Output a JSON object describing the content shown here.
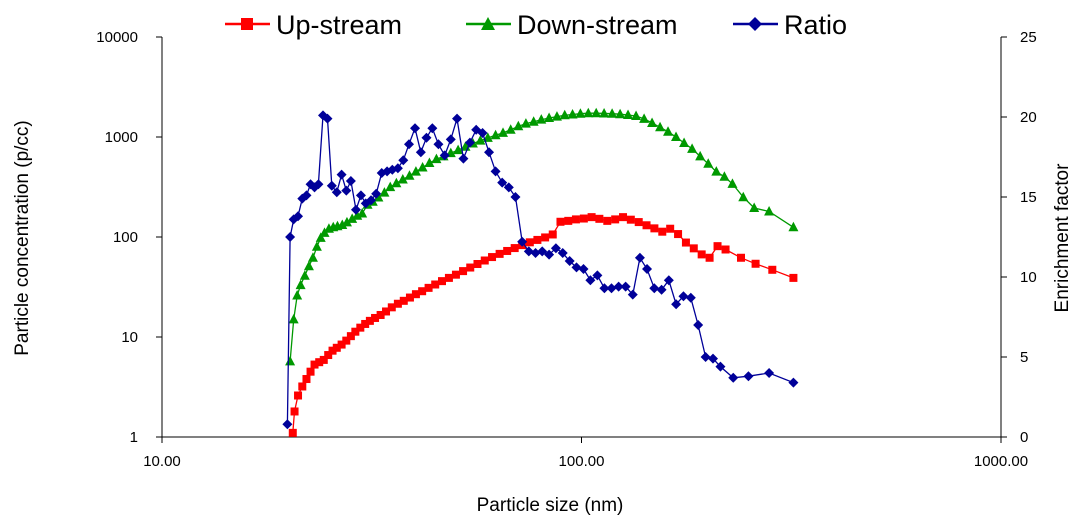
{
  "chart_data": {
    "type": "line",
    "x_scale": "log",
    "y_scale": "log",
    "y2_scale": "linear",
    "xlim": [
      10,
      1000
    ],
    "ylim": [
      1,
      10000
    ],
    "y2lim": [
      0,
      25
    ],
    "xlabel": "Particle size (nm)",
    "ylabel": "Particle concentration (p/cc)",
    "y2label": "Enrichment factor",
    "x_ticks": [
      "10.00",
      "100.00",
      "1000.00"
    ],
    "y_ticks": [
      "1",
      "10",
      "100",
      "1000",
      "10000"
    ],
    "y2_ticks": [
      "0",
      "5",
      "10",
      "15",
      "20",
      "25"
    ],
    "grid": false,
    "legend_position": "top",
    "series": [
      {
        "name": "Up-stream",
        "color": "#ff0000",
        "marker": "square",
        "axis": "left",
        "points": [
          [
            20.5,
            1.1
          ],
          [
            20.7,
            1.8
          ],
          [
            21.1,
            2.6
          ],
          [
            21.6,
            3.2
          ],
          [
            22.1,
            3.8
          ],
          [
            22.6,
            4.5
          ],
          [
            23.1,
            5.3
          ],
          [
            23.7,
            5.6
          ],
          [
            24.3,
            5.9
          ],
          [
            24.9,
            6.6
          ],
          [
            25.5,
            7.3
          ],
          [
            26.1,
            7.8
          ],
          [
            26.8,
            8.4
          ],
          [
            27.5,
            9.2
          ],
          [
            28.2,
            10.2
          ],
          [
            28.9,
            11.3
          ],
          [
            29.7,
            12.4
          ],
          [
            30.5,
            13.5
          ],
          [
            31.3,
            14.5
          ],
          [
            32.2,
            15.5
          ],
          [
            33.2,
            16.6
          ],
          [
            34.2,
            18.0
          ],
          [
            35.3,
            19.8
          ],
          [
            36.5,
            21.5
          ],
          [
            37.7,
            23.0
          ],
          [
            39.0,
            24.8
          ],
          [
            40.3,
            26.8
          ],
          [
            41.7,
            28.7
          ],
          [
            43.2,
            31.0
          ],
          [
            44.8,
            33.5
          ],
          [
            46.5,
            36.2
          ],
          [
            48.3,
            39.0
          ],
          [
            50.2,
            42.0
          ],
          [
            52.2,
            45.6
          ],
          [
            54.3,
            49.5
          ],
          [
            56.5,
            53.7
          ],
          [
            58.8,
            58.2
          ],
          [
            61.2,
            63.0
          ],
          [
            63.8,
            67.8
          ],
          [
            66.5,
            72.5
          ],
          [
            69.3,
            77.5
          ],
          [
            72.2,
            83.0
          ],
          [
            75.3,
            88.5
          ],
          [
            78.5,
            93.5
          ],
          [
            81.9,
            99.0
          ],
          [
            85.4,
            106.0
          ],
          [
            89.1,
            142.0
          ],
          [
            93.0,
            145.0
          ],
          [
            97.0,
            150.0
          ],
          [
            101.3,
            153.0
          ],
          [
            105.7,
            158.0
          ],
          [
            110.3,
            152.0
          ],
          [
            115.2,
            145.0
          ],
          [
            120.3,
            150.0
          ],
          [
            125.6,
            158.0
          ],
          [
            131.1,
            149.0
          ],
          [
            136.9,
            141.0
          ],
          [
            142.9,
            131.0
          ],
          [
            149.2,
            122.0
          ],
          [
            155.8,
            113.0
          ],
          [
            162.7,
            121.0
          ],
          [
            169.9,
            107.0
          ],
          [
            177.4,
            88.0
          ],
          [
            185.2,
            77.0
          ],
          [
            193.4,
            67.0
          ],
          [
            202.0,
            62.0
          ],
          [
            211.0,
            81.0
          ],
          [
            220.5,
            75.0
          ],
          [
            240.0,
            62.0
          ],
          [
            260.0,
            54.0
          ],
          [
            285.0,
            47.0
          ],
          [
            320.0,
            39.0
          ]
        ]
      },
      {
        "name": "Down-stream",
        "color": "#009900",
        "marker": "triangle",
        "axis": "left",
        "points": [
          [
            20.2,
            5.7
          ],
          [
            20.6,
            15.0
          ],
          [
            21.0,
            26.0
          ],
          [
            21.4,
            33.0
          ],
          [
            21.9,
            41.0
          ],
          [
            22.4,
            51.0
          ],
          [
            22.9,
            62.0
          ],
          [
            23.4,
            80.0
          ],
          [
            23.9,
            98.0
          ],
          [
            24.4,
            110.0
          ],
          [
            25.0,
            121.0
          ],
          [
            25.6,
            125.0
          ],
          [
            26.2,
            128.0
          ],
          [
            26.9,
            132.0
          ],
          [
            27.6,
            140.0
          ],
          [
            28.4,
            152.0
          ],
          [
            29.2,
            163.0
          ],
          [
            30.0,
            172.0
          ],
          [
            30.9,
            210.0
          ],
          [
            31.8,
            225.0
          ],
          [
            32.8,
            248.0
          ],
          [
            33.9,
            278.0
          ],
          [
            35.0,
            315.0
          ],
          [
            36.2,
            345.0
          ],
          [
            37.5,
            376.0
          ],
          [
            38.9,
            410.0
          ],
          [
            40.3,
            450.0
          ],
          [
            41.8,
            495.0
          ],
          [
            43.4,
            550.0
          ],
          [
            45.1,
            600.0
          ],
          [
            46.9,
            640.0
          ],
          [
            48.8,
            690.0
          ],
          [
            50.8,
            740.0
          ],
          [
            52.9,
            800.0
          ],
          [
            55.1,
            860.0
          ],
          [
            57.4,
            920.0
          ],
          [
            59.8,
            980.0
          ],
          [
            62.4,
            1040.0
          ],
          [
            65.0,
            1100.0
          ],
          [
            67.8,
            1180.0
          ],
          [
            70.7,
            1280.0
          ],
          [
            73.7,
            1360.0
          ],
          [
            76.9,
            1420.0
          ],
          [
            80.2,
            1490.0
          ],
          [
            83.7,
            1550.0
          ],
          [
            87.4,
            1600.0
          ],
          [
            91.2,
            1650.0
          ],
          [
            95.2,
            1680.0
          ],
          [
            99.4,
            1710.0
          ],
          [
            103.8,
            1730.0
          ],
          [
            108.4,
            1730.0
          ],
          [
            113.2,
            1720.0
          ],
          [
            118.3,
            1710.0
          ],
          [
            123.6,
            1690.0
          ],
          [
            129.1,
            1660.0
          ],
          [
            134.9,
            1620.0
          ],
          [
            141.0,
            1520.0
          ],
          [
            147.3,
            1380.0
          ],
          [
            153.9,
            1250.0
          ],
          [
            160.8,
            1130.0
          ],
          [
            168.0,
            1000.0
          ],
          [
            175.6,
            870.0
          ],
          [
            183.5,
            760.0
          ],
          [
            191.8,
            640.0
          ],
          [
            200.5,
            540.0
          ],
          [
            209.6,
            450.0
          ],
          [
            219.1,
            400.0
          ],
          [
            229.0,
            340.0
          ],
          [
            243.0,
            250.0
          ],
          [
            258.0,
            195.0
          ],
          [
            280.0,
            180.0
          ],
          [
            320.0,
            125.0
          ]
        ]
      },
      {
        "name": "Ratio",
        "color": "#000099",
        "marker": "diamond",
        "axis": "right",
        "points": [
          [
            19.9,
            0.8
          ],
          [
            20.2,
            12.5
          ],
          [
            20.6,
            13.6
          ],
          [
            21.1,
            13.8
          ],
          [
            21.6,
            14.9
          ],
          [
            22.1,
            15.1
          ],
          [
            22.6,
            15.8
          ],
          [
            23.1,
            15.6
          ],
          [
            23.6,
            15.8
          ],
          [
            24.2,
            20.1
          ],
          [
            24.8,
            19.9
          ],
          [
            25.4,
            15.7
          ],
          [
            26.1,
            15.3
          ],
          [
            26.8,
            16.4
          ],
          [
            27.5,
            15.4
          ],
          [
            28.2,
            16.0
          ],
          [
            29.0,
            14.2
          ],
          [
            29.8,
            15.1
          ],
          [
            30.6,
            14.6
          ],
          [
            31.5,
            14.8
          ],
          [
            32.4,
            15.2
          ],
          [
            33.4,
            16.5
          ],
          [
            34.4,
            16.6
          ],
          [
            35.4,
            16.7
          ],
          [
            36.5,
            16.8
          ],
          [
            37.6,
            17.3
          ],
          [
            38.8,
            18.3
          ],
          [
            40.1,
            19.3
          ],
          [
            41.4,
            17.8
          ],
          [
            42.7,
            18.7
          ],
          [
            44.1,
            19.3
          ],
          [
            45.6,
            18.3
          ],
          [
            47.2,
            17.6
          ],
          [
            48.8,
            18.6
          ],
          [
            50.5,
            19.9
          ],
          [
            52.3,
            17.4
          ],
          [
            54.2,
            18.4
          ],
          [
            56.1,
            19.2
          ],
          [
            58.1,
            19.0
          ],
          [
            60.2,
            17.8
          ],
          [
            62.4,
            16.6
          ],
          [
            64.7,
            15.9
          ],
          [
            67.1,
            15.6
          ],
          [
            69.6,
            15.0
          ],
          [
            72.2,
            12.2
          ],
          [
            74.9,
            11.6
          ],
          [
            77.7,
            11.5
          ],
          [
            80.6,
            11.6
          ],
          [
            83.7,
            11.4
          ],
          [
            86.9,
            11.8
          ],
          [
            90.2,
            11.5
          ],
          [
            93.7,
            11.0
          ],
          [
            97.3,
            10.6
          ],
          [
            101.1,
            10.5
          ],
          [
            105.0,
            9.8
          ],
          [
            109.1,
            10.1
          ],
          [
            113.4,
            9.3
          ],
          [
            117.9,
            9.3
          ],
          [
            122.6,
            9.4
          ],
          [
            127.4,
            9.4
          ],
          [
            132.5,
            8.9
          ],
          [
            137.8,
            11.2
          ],
          [
            143.3,
            10.5
          ],
          [
            149.1,
            9.3
          ],
          [
            155.2,
            9.2
          ],
          [
            161.5,
            9.8
          ],
          [
            168.1,
            8.3
          ],
          [
            175.0,
            8.8
          ],
          [
            182.2,
            8.7
          ],
          [
            189.7,
            7.0
          ],
          [
            197.6,
            5.0
          ],
          [
            205.8,
            4.9
          ],
          [
            214.4,
            4.4
          ],
          [
            230.0,
            3.7
          ],
          [
            250.0,
            3.8
          ],
          [
            280.0,
            4.0
          ],
          [
            320.0,
            3.4
          ]
        ]
      }
    ]
  }
}
